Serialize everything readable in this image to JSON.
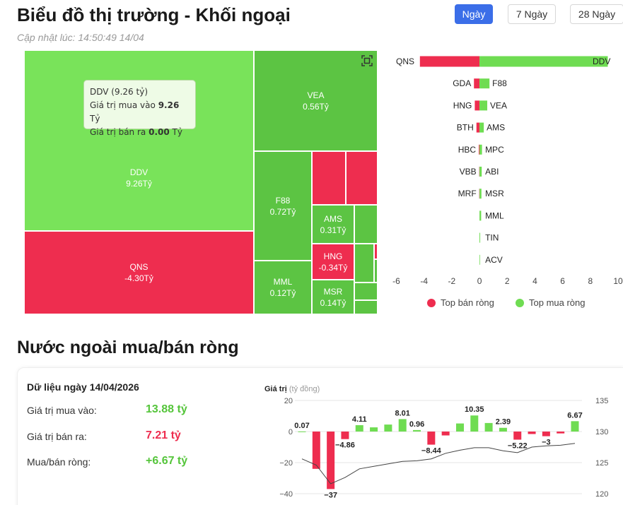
{
  "header": {
    "title": "Biểu đồ thị trường - Khối ngoại",
    "updated": "Cập nhật lúc: 14:50:49 14/04",
    "periods": [
      {
        "label": "Ngày",
        "active": true
      },
      {
        "label": "7 Ngày",
        "active": false
      },
      {
        "label": "28 Ngày",
        "active": false
      }
    ]
  },
  "colors": {
    "buy": "#6fdc52",
    "buy_dark": "#5cc443",
    "sell": "#ee2d4f",
    "line": "#444444",
    "axis_text": "#666666",
    "grid": "#e8e8e8"
  },
  "treemap": {
    "labeled": [
      {
        "code": "DDV",
        "value": "9.26Tỷ",
        "side": "buy"
      },
      {
        "code": "QNS",
        "value": "-4.30Tỷ",
        "side": "sell"
      },
      {
        "code": "VEA",
        "value": "0.56Tỷ",
        "side": "buy"
      },
      {
        "code": "F88",
        "value": "0.72Tỷ",
        "side": "buy"
      },
      {
        "code": "AMS",
        "value": "0.31Tỷ",
        "side": "buy"
      },
      {
        "code": "HNG",
        "value": "-0.34Tỷ",
        "side": "sell"
      },
      {
        "code": "MML",
        "value": "0.12Tỷ",
        "side": "buy"
      },
      {
        "code": "MSR",
        "value": "0.14Tỷ",
        "side": "buy"
      }
    ],
    "tooltip": {
      "title": "DDV (9.26 tỷ)",
      "buy_label": "Giá trị mua vào",
      "buy_value": "9.26",
      "sell_label": "Giá trị bán ra",
      "sell_value": "0.00",
      "unit": "Tỷ"
    }
  },
  "chart_data": [
    {
      "type": "bar",
      "orientation": "horizontal",
      "xlim": [
        -6,
        10
      ],
      "xticks": [
        "-6",
        "-4",
        "-2",
        "0",
        "2",
        "4",
        "6",
        "8",
        "10"
      ],
      "rows": [
        {
          "sell_code": "QNS",
          "sell": -4.3,
          "buy_code": "DDV",
          "buy": 9.26
        },
        {
          "sell_code": "GDA",
          "sell": -0.4,
          "buy_code": "F88",
          "buy": 0.72
        },
        {
          "sell_code": "HNG",
          "sell": -0.34,
          "buy_code": "VEA",
          "buy": 0.56
        },
        {
          "sell_code": "BTH",
          "sell": -0.22,
          "buy_code": "AMS",
          "buy": 0.31
        },
        {
          "sell_code": "HBC",
          "sell": -0.05,
          "buy_code": "MPC",
          "buy": 0.18
        },
        {
          "sell_code": "VBB",
          "sell": -0.02,
          "buy_code": "ABI",
          "buy": 0.16
        },
        {
          "sell_code": "MRF",
          "sell": -0.02,
          "buy_code": "MSR",
          "buy": 0.14
        },
        {
          "sell_code": "",
          "sell": 0,
          "buy_code": "MML",
          "buy": 0.12
        },
        {
          "sell_code": "",
          "sell": 0,
          "buy_code": "TIN",
          "buy": 0.05
        },
        {
          "sell_code": "",
          "sell": 0,
          "buy_code": "ACV",
          "buy": 0.04
        }
      ],
      "legend": [
        {
          "name": "Top bán ròng",
          "color": "#ee2d4f"
        },
        {
          "name": "Top mua ròng",
          "color": "#6fdc52"
        }
      ]
    },
    {
      "type": "bar",
      "ylabel": "Giá trị",
      "ylabel_unit": "(tỷ đồng)",
      "ylim": [
        -40,
        20
      ],
      "yticks": [
        "20",
        "0",
        "−20",
        "−40"
      ],
      "y2lim": [
        120,
        135
      ],
      "y2ticks": [
        "135",
        "130",
        "125",
        "120"
      ],
      "values": [
        0.07,
        -24,
        -37,
        -4.86,
        4.11,
        2.7,
        4.5,
        8.01,
        0.96,
        -8.44,
        -2.5,
        5.2,
        10.35,
        5.5,
        2.39,
        -5.22,
        -1.6,
        -3,
        -1.2,
        6.67
      ],
      "value_labels": [
        {
          "index": 0,
          "text": "0.07"
        },
        {
          "index": 2,
          "text": "−37"
        },
        {
          "index": 3,
          "text": "−4.86"
        },
        {
          "index": 4,
          "text": "4.11"
        },
        {
          "index": 7,
          "text": "8.01"
        },
        {
          "index": 8,
          "text": "0.96"
        },
        {
          "index": 9,
          "text": "−8.44"
        },
        {
          "index": 12,
          "text": "10.35"
        },
        {
          "index": 14,
          "text": "2.39"
        },
        {
          "index": 15,
          "text": "−5.22"
        },
        {
          "index": 17,
          "text": "−3"
        },
        {
          "index": 19,
          "text": "6.67"
        }
      ],
      "line_values": [
        125.6,
        124.6,
        121.6,
        122.6,
        124.0,
        124.4,
        124.8,
        125.2,
        125.3,
        125.6,
        126.5,
        127.0,
        127.4,
        127.4,
        126.9,
        126.6,
        127.5,
        127.7,
        127.8,
        128.1
      ]
    }
  ],
  "net": {
    "section_title": "Nước ngoài mua/bán ròng",
    "date_label": "Dữ liệu ngày 14/04/2026",
    "rows": [
      {
        "label": "Giá trị mua vào:",
        "value": "13.88 tỷ",
        "color": "#55c53b"
      },
      {
        "label": "Giá trị bán ra:",
        "value": "7.21 tỷ",
        "color": "#ee2d4f"
      },
      {
        "label": "Mua/bán ròng:",
        "value": "+6.67 tỷ",
        "color": "#55c53b"
      }
    ]
  }
}
